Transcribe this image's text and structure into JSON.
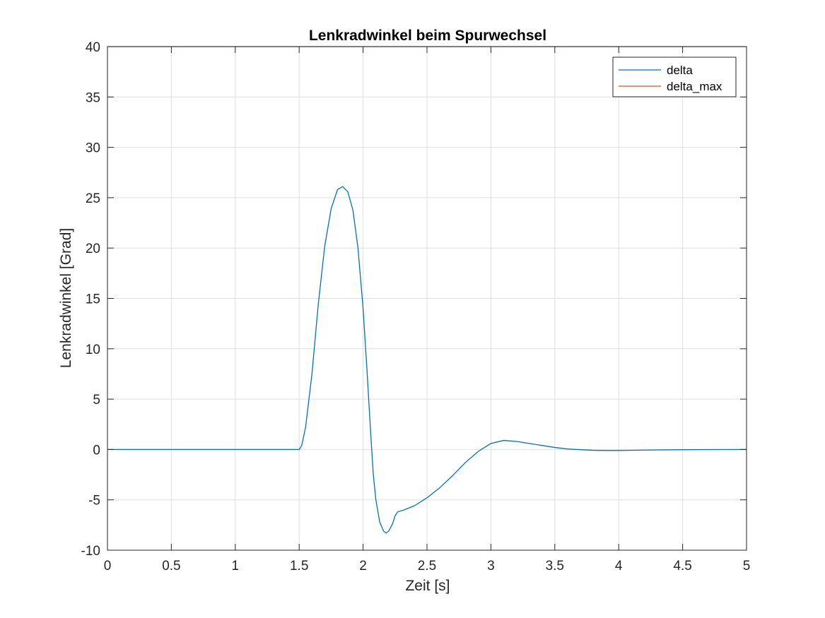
{
  "chart_data": {
    "type": "line",
    "title": "Lenkradwinkel beim Spurwechsel",
    "xlabel": "Zeit [s]",
    "ylabel": "Lenkradwinkel [Grad]",
    "xlim": [
      0,
      5
    ],
    "ylim": [
      -10,
      40
    ],
    "xticks": [
      0,
      0.5,
      1,
      1.5,
      2,
      2.5,
      3,
      3.5,
      4,
      4.5,
      5
    ],
    "xtick_labels": [
      "0",
      "0.5",
      "1",
      "1.5",
      "2",
      "2.5",
      "3",
      "3.5",
      "4",
      "4.5",
      "5"
    ],
    "yticks": [
      -10,
      -5,
      0,
      5,
      10,
      15,
      20,
      25,
      30,
      35,
      40
    ],
    "ytick_labels": [
      "-10",
      "-5",
      "0",
      "5",
      "10",
      "15",
      "20",
      "25",
      "30",
      "35",
      "40"
    ],
    "grid": true,
    "legend_position": "top-right",
    "series": [
      {
        "name": "delta",
        "color": "#0072BD",
        "points": [
          [
            0,
            0
          ],
          [
            1.5,
            0
          ],
          [
            1.52,
            0.4
          ],
          [
            1.55,
            2.2
          ],
          [
            1.6,
            7.5
          ],
          [
            1.65,
            14.5
          ],
          [
            1.7,
            20.2
          ],
          [
            1.75,
            23.9
          ],
          [
            1.8,
            25.8
          ],
          [
            1.84,
            26.1
          ],
          [
            1.88,
            25.6
          ],
          [
            1.92,
            23.8
          ],
          [
            1.96,
            20.0
          ],
          [
            2.0,
            14.0
          ],
          [
            2.03,
            8.0
          ],
          [
            2.06,
            1.5
          ],
          [
            2.08,
            -2.5
          ],
          [
            2.1,
            -5.0
          ],
          [
            2.13,
            -7.2
          ],
          [
            2.16,
            -8.1
          ],
          [
            2.18,
            -8.3
          ],
          [
            2.2,
            -8.1
          ],
          [
            2.23,
            -7.4
          ],
          [
            2.25,
            -6.6
          ],
          [
            2.27,
            -6.2
          ],
          [
            2.32,
            -6.0
          ],
          [
            2.4,
            -5.6
          ],
          [
            2.5,
            -4.8
          ],
          [
            2.6,
            -3.8
          ],
          [
            2.7,
            -2.6
          ],
          [
            2.8,
            -1.3
          ],
          [
            2.9,
            -0.2
          ],
          [
            3.0,
            0.6
          ],
          [
            3.1,
            0.9
          ],
          [
            3.2,
            0.8
          ],
          [
            3.3,
            0.6
          ],
          [
            3.4,
            0.4
          ],
          [
            3.5,
            0.2
          ],
          [
            3.6,
            0.05
          ],
          [
            3.7,
            -0.02
          ],
          [
            3.8,
            -0.08
          ],
          [
            3.9,
            -0.1
          ],
          [
            4.0,
            -0.1
          ],
          [
            4.2,
            -0.06
          ],
          [
            4.5,
            -0.02
          ],
          [
            5.0,
            0
          ]
        ]
      },
      {
        "name": "delta_max",
        "color": "#D95319",
        "points": [
          [
            0,
            40
          ],
          [
            5,
            40
          ]
        ]
      }
    ]
  }
}
